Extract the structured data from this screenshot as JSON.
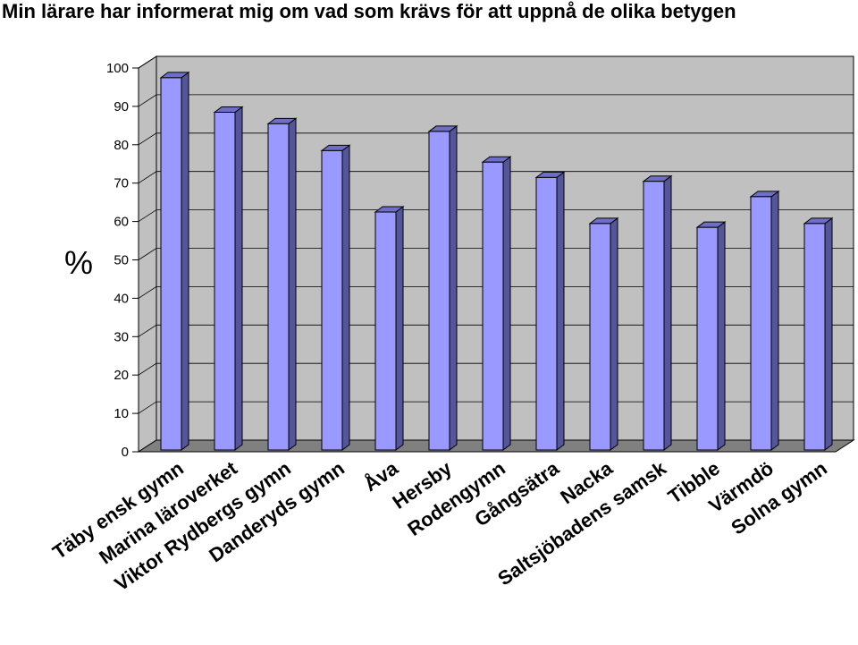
{
  "chart_data": {
    "type": "bar",
    "title": "Min lärare har informerat mig om vad som krävs för att uppnå de olika betygen",
    "ylabel": "%",
    "xlabel": "",
    "ylim": [
      0,
      100
    ],
    "yticks": [
      0,
      10,
      20,
      30,
      40,
      50,
      60,
      70,
      80,
      90,
      100
    ],
    "grid": true,
    "legend": "none",
    "categories": [
      "Täby ensk gymn",
      "Marina läroverket",
      "Viktor Rydbergs gymn",
      "Danderyds gymn",
      "Åva",
      "Hersby",
      "Rodengymn",
      "Gångsätra",
      "Nacka",
      "Saltsjöbadens samsk",
      "Tibble",
      "Värmdö",
      "Solna gymn"
    ],
    "values": [
      97,
      88,
      85,
      78,
      62,
      83,
      75,
      71,
      59,
      70,
      58,
      66,
      59
    ],
    "colors": {
      "bar_front": "#9999ff",
      "bar_side": "#555599",
      "bar_top": "#6e6ec4",
      "wall": "#c0c0c0",
      "floor": "#808080",
      "gridline": "#000000"
    }
  }
}
